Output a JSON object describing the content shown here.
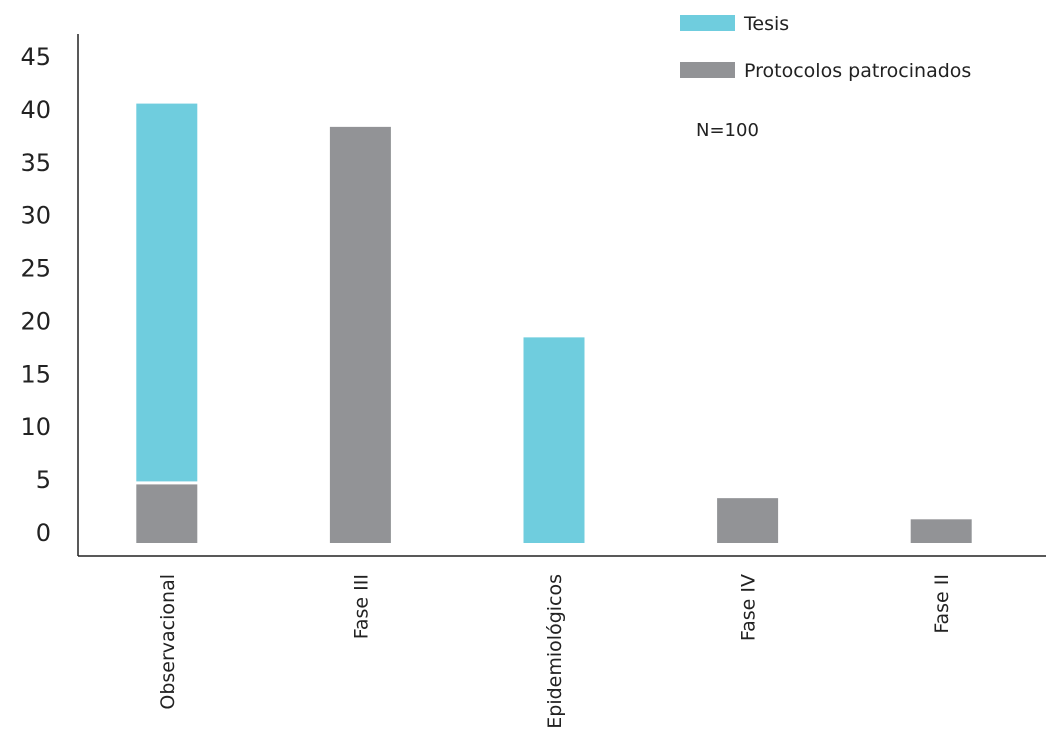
{
  "colors": {
    "tesis": "#6fcdde",
    "protocolos": "#929396",
    "axis": "#222222"
  },
  "legend": {
    "tesis_label": "Tesis",
    "protocolos_label": "Protocolos patrocinados"
  },
  "annotation": "N=100",
  "chart_data": {
    "type": "bar",
    "stacked": true,
    "title": "",
    "xlabel": "",
    "ylabel": "",
    "ylim": [
      0,
      45
    ],
    "yticks": [
      0,
      5,
      10,
      15,
      20,
      25,
      30,
      35,
      40,
      45
    ],
    "categories": [
      "Observacional",
      "Fase III",
      "Epidemiológicos",
      "Fase IV",
      "Fase II"
    ],
    "series": [
      {
        "name": "Protocolos patrocinados",
        "color_key": "protocolos",
        "values": [
          4.5,
          38.3,
          0,
          3.2,
          1.2
        ]
      },
      {
        "name": "Tesis",
        "color_key": "tesis",
        "values": [
          36,
          0,
          18.4,
          0,
          0
        ]
      }
    ],
    "legend_position": "top-right",
    "grid": false,
    "annotations": [
      "N=100"
    ]
  }
}
